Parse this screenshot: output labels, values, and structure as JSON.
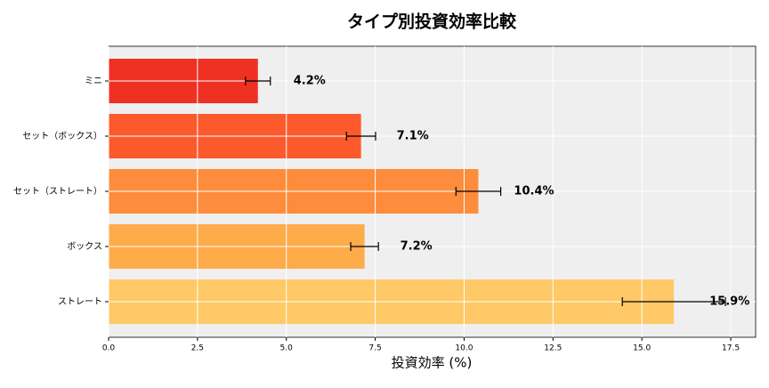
{
  "chart_data": {
    "type": "hbar",
    "title": "タイプ別投資効率比較",
    "xlabel": "投資効率 (%)",
    "categories": [
      "ミニ",
      "セット（ボックス）",
      "セット（ストレート）",
      "ボックス",
      "ストレート"
    ],
    "values": [
      4.2,
      7.1,
      10.4,
      7.2,
      15.9
    ],
    "errors": [
      0.35,
      0.41,
      0.63,
      0.39,
      1.45
    ],
    "value_labels": [
      "4.2%",
      "7.1%",
      "10.4%",
      "7.2%",
      "15.9%"
    ],
    "colors": [
      "#ee3123",
      "#fc5a2d",
      "#fd8c3c",
      "#feab4a",
      "#fec966"
    ],
    "xlim": [
      0,
      18.2
    ],
    "xticks": [
      {
        "value": 0,
        "label": "0.0"
      },
      {
        "value": 2.5,
        "label": "2.5"
      },
      {
        "value": 5,
        "label": "5.0"
      },
      {
        "value": 7.5,
        "label": "7.5"
      },
      {
        "value": 10,
        "label": "10.0"
      },
      {
        "value": 12.5,
        "label": "12.5"
      },
      {
        "value": 15,
        "label": "15.0"
      },
      {
        "value": 17.5,
        "label": "17.5"
      }
    ],
    "grid": true
  }
}
